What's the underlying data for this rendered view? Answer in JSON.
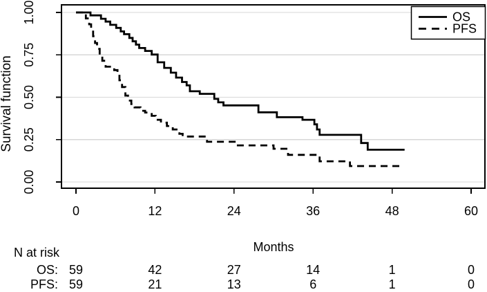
{
  "chart_data": {
    "type": "line",
    "variant": "kaplan-meier-step",
    "title": "",
    "xlabel": "Months",
    "ylabel": "Survival function",
    "xlim": [
      0,
      60
    ],
    "ylim": [
      0,
      1
    ],
    "xticks": [
      0,
      12,
      24,
      36,
      48,
      60
    ],
    "ytick_labels": [
      "0.00",
      "0.25",
      "0.50",
      "0.75",
      "1.00"
    ],
    "grid": {
      "horizontal": true,
      "vertical": false
    },
    "legend": {
      "position": "top-right",
      "entries": [
        {
          "label": "OS",
          "line": "solid"
        },
        {
          "label": "PFS",
          "line": "dashed"
        }
      ]
    },
    "series": [
      {
        "name": "OS",
        "line": "solid",
        "points": [
          [
            0,
            1.0
          ],
          [
            2.2,
            0.983
          ],
          [
            3.8,
            0.963
          ],
          [
            4.5,
            0.946
          ],
          [
            5.2,
            0.927
          ],
          [
            6.1,
            0.909
          ],
          [
            6.8,
            0.888
          ],
          [
            7.3,
            0.872
          ],
          [
            8.1,
            0.85
          ],
          [
            8.6,
            0.83
          ],
          [
            9.1,
            0.81
          ],
          [
            9.6,
            0.79
          ],
          [
            10.5,
            0.773
          ],
          [
            11.5,
            0.752
          ],
          [
            12.4,
            0.706
          ],
          [
            13.4,
            0.673
          ],
          [
            14.4,
            0.645
          ],
          [
            15.2,
            0.616
          ],
          [
            16.1,
            0.59
          ],
          [
            16.8,
            0.57
          ],
          [
            17.3,
            0.535
          ],
          [
            18.8,
            0.52
          ],
          [
            21.0,
            0.49
          ],
          [
            21.6,
            0.47
          ],
          [
            22.4,
            0.452
          ],
          [
            27.7,
            0.411
          ],
          [
            30.5,
            0.382
          ],
          [
            34.4,
            0.367
          ],
          [
            36.2,
            0.34
          ],
          [
            36.6,
            0.31
          ],
          [
            37.0,
            0.278
          ],
          [
            43.3,
            0.23
          ],
          [
            44.3,
            0.19
          ],
          [
            49.9,
            0.19
          ]
        ]
      },
      {
        "name": "PFS",
        "line": "dashed",
        "points": [
          [
            0,
            1.0
          ],
          [
            1.5,
            0.965
          ],
          [
            2.0,
            0.93
          ],
          [
            2.3,
            0.895
          ],
          [
            2.6,
            0.86
          ],
          [
            2.9,
            0.82
          ],
          [
            3.2,
            0.785
          ],
          [
            3.6,
            0.75
          ],
          [
            4.0,
            0.715
          ],
          [
            4.5,
            0.68
          ],
          [
            5.8,
            0.66
          ],
          [
            6.3,
            0.64
          ],
          [
            6.6,
            0.6
          ],
          [
            7.0,
            0.56
          ],
          [
            7.5,
            0.51
          ],
          [
            7.9,
            0.48
          ],
          [
            8.4,
            0.46
          ],
          [
            8.9,
            0.44
          ],
          [
            9.8,
            0.42
          ],
          [
            10.5,
            0.41
          ],
          [
            11.5,
            0.39
          ],
          [
            12.1,
            0.367
          ],
          [
            12.9,
            0.35
          ],
          [
            13.8,
            0.33
          ],
          [
            14.7,
            0.31
          ],
          [
            15.7,
            0.284
          ],
          [
            16.2,
            0.268
          ],
          [
            19.9,
            0.237
          ],
          [
            24.4,
            0.216
          ],
          [
            30.0,
            0.196
          ],
          [
            32.2,
            0.16
          ],
          [
            37.0,
            0.122
          ],
          [
            41.6,
            0.094
          ],
          [
            49.6,
            0.094
          ]
        ]
      }
    ],
    "risk_table": {
      "title": "N at risk",
      "times": [
        0,
        12,
        24,
        36,
        48,
        60
      ],
      "rows": [
        {
          "label": "OS:",
          "counts": [
            "59",
            "42",
            "27",
            "14",
            "1",
            "0"
          ]
        },
        {
          "label": "PFS:",
          "counts": [
            "59",
            "21",
            "13",
            "6",
            "1",
            "0"
          ]
        }
      ]
    },
    "colors": {
      "line": "#000000",
      "grid": "#d7d7d7",
      "background": "#ffffff",
      "text": "#000000"
    }
  }
}
